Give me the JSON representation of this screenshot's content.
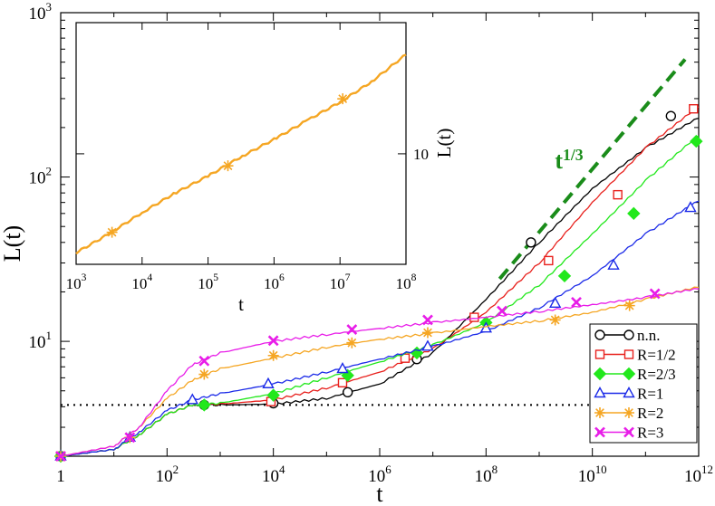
{
  "chart_data": [
    {
      "type": "line",
      "scale": {
        "x": "log",
        "y": "log"
      },
      "xlim": [
        1,
        1000000000000.0
      ],
      "ylim": [
        2,
        1000
      ],
      "xlabel": "t",
      "ylabel": "L(t)",
      "x_tick_labels": [
        {
          "value": 1,
          "base": "1",
          "exp": ""
        },
        {
          "value": 100,
          "base": "10",
          "exp": "2"
        },
        {
          "value": 10000,
          "base": "10",
          "exp": "4"
        },
        {
          "value": 1000000,
          "base": "10",
          "exp": "6"
        },
        {
          "value": 100000000,
          "base": "10",
          "exp": "8"
        },
        {
          "value": 10000000000,
          "base": "10",
          "exp": "10"
        },
        {
          "value": 1000000000000,
          "base": "10",
          "exp": "12"
        }
      ],
      "y_tick_labels": [
        {
          "value": 10,
          "base": "10",
          "exp": "1"
        },
        {
          "value": 100,
          "base": "10",
          "exp": "2"
        },
        {
          "value": 1000,
          "base": "10",
          "exp": "3"
        }
      ],
      "reference_lines": [
        {
          "style": "dotted",
          "color": "#000000",
          "y": 4.1,
          "x": [
            1,
            1000000000000.0
          ]
        },
        {
          "style": "dashed",
          "color": "#1a8c1a",
          "x": [
            100000000.0,
            1000000000000.0
          ],
          "y": [
            24,
            520
          ],
          "label_base": "t",
          "label_exp": "1/3"
        }
      ],
      "legend": {
        "position": "bottom-right"
      },
      "series": [
        {
          "name": "n.n.",
          "color": "#000000",
          "marker": "circle",
          "x": [
            1,
            10,
            30,
            100,
            300,
            1000,
            10000,
            100000,
            1000000,
            10000000,
            100000000,
            1000000000,
            10000000000,
            100000000000,
            1000000000000
          ],
          "y": [
            2,
            2.2,
            2.7,
            3.6,
            4.1,
            4.1,
            4.15,
            4.5,
            5.5,
            8.5,
            18,
            40,
            85,
            150,
            230
          ],
          "markers_x": [
            1,
            500,
            10000,
            250000,
            5000000,
            700000000,
            300000000000
          ],
          "markers_y": [
            2,
            4.1,
            4.2,
            4.9,
            7.8,
            40,
            235
          ]
        },
        {
          "name": "R=1/2",
          "color": "#e8201c",
          "marker": "square",
          "x": [
            1,
            10,
            30,
            100,
            300,
            1000,
            10000,
            100000,
            1000000,
            10000000,
            100000000,
            1000000000,
            10000000000,
            100000000000,
            1000000000000
          ],
          "y": [
            2,
            2.2,
            2.7,
            3.6,
            4.1,
            4.15,
            4.4,
            5.2,
            6.5,
            9,
            15,
            30,
            70,
            150,
            270
          ],
          "markers_x": [
            1,
            9000,
            200000,
            3000000,
            60000000,
            1500000000,
            30000000000,
            800000000000
          ],
          "markers_y": [
            2,
            4.3,
            5.6,
            7.9,
            14,
            31,
            78,
            260
          ]
        },
        {
          "name": "R=2/3",
          "color": "#22e81c",
          "marker": "diamond",
          "x": [
            1,
            10,
            30,
            100,
            300,
            1000,
            10000,
            100000,
            1000000,
            10000000,
            100000000,
            1000000000,
            10000000000,
            100000000000,
            1000000000000
          ],
          "y": [
            2,
            2.2,
            2.7,
            3.6,
            4.1,
            4.2,
            4.8,
            6,
            7.5,
            9.5,
            13,
            22,
            45,
            95,
            180
          ],
          "markers_x": [
            1,
            500,
            10000,
            250000,
            5000000,
            100000000,
            3000000000,
            60000000000,
            900000000000
          ],
          "markers_y": [
            2,
            4.1,
            4.7,
            6.2,
            8.5,
            13,
            25,
            60,
            165
          ]
        },
        {
          "name": "R=1",
          "color": "#1c2be8",
          "marker": "triangle",
          "x": [
            1,
            10,
            30,
            100,
            300,
            1000,
            10000,
            100000,
            1000000,
            10000000,
            100000000,
            1000000000,
            10000000000,
            100000000000,
            1000000000000
          ],
          "y": [
            2,
            2.2,
            2.8,
            3.8,
            4.4,
            4.8,
            5.5,
            6.5,
            7.8,
            9.3,
            11.5,
            16,
            25,
            45,
            72
          ],
          "markers_x": [
            1,
            20,
            300,
            8000,
            200000,
            8000000,
            100000000,
            2000000000,
            25000000000,
            700000000000
          ],
          "markers_y": [
            2,
            2.6,
            4.4,
            5.5,
            6.8,
            9.3,
            12,
            17,
            29,
            65
          ]
        },
        {
          "name": "R=2",
          "color": "#f5a623",
          "marker": "star",
          "x": [
            1,
            10,
            30,
            100,
            300,
            1000,
            10000,
            100000,
            1000000,
            10000000,
            100000000,
            1000000000,
            10000000000,
            100000000000,
            1000000000000
          ],
          "y": [
            2,
            2.3,
            3,
            4.5,
            5.8,
            6.8,
            7.9,
            9.2,
            10.3,
            11.2,
            12.3,
            13.3,
            15,
            18,
            21.5
          ],
          "markers_x": [
            1,
            20,
            500,
            10000,
            300000,
            8000000,
            2000000000,
            50000000000
          ],
          "markers_y": [
            2,
            2.6,
            6.3,
            8.2,
            9.8,
            11.3,
            13.5,
            16.5
          ]
        },
        {
          "name": "R=3",
          "color": "#e81ce8",
          "marker": "x",
          "x": [
            1,
            10,
            30,
            100,
            300,
            1000,
            10000,
            100000,
            1000000,
            10000000,
            100000000,
            1000000000,
            10000000000,
            100000000000,
            1000000000000
          ],
          "y": [
            2,
            2.3,
            3,
            5,
            7.2,
            8.5,
            10,
            11,
            12,
            13,
            14,
            15.2,
            16.7,
            18.5,
            21
          ],
          "markers_x": [
            1,
            20,
            500,
            10000,
            300000,
            8000000,
            200000000,
            5000000000,
            150000000000
          ],
          "markers_y": [
            2,
            2.6,
            7.6,
            10.1,
            11.8,
            13.5,
            15.3,
            17.3,
            19.5
          ]
        }
      ]
    },
    {
      "type": "line",
      "inset": true,
      "scale": {
        "x": "log",
        "y": "log"
      },
      "xlim": [
        1000,
        100000000
      ],
      "ylim": [
        4.2,
        28
      ],
      "xlabel": "t",
      "ylabel": "L(t)",
      "y_ticks_right": true,
      "x_tick_labels": [
        {
          "value": 1000,
          "base": "10",
          "exp": "3"
        },
        {
          "value": 10000,
          "base": "10",
          "exp": "4"
        },
        {
          "value": 100000,
          "base": "10",
          "exp": "5"
        },
        {
          "value": 1000000,
          "base": "10",
          "exp": "6"
        },
        {
          "value": 10000000,
          "base": "10",
          "exp": "7"
        },
        {
          "value": 100000000,
          "base": "10",
          "exp": "8"
        }
      ],
      "y_tick_labels": [
        {
          "value": 10,
          "text": "10"
        }
      ],
      "series": [
        {
          "color": "#f5a623",
          "marker": "star",
          "x": [
            1000,
            3000,
            10000,
            30000,
            100000,
            300000,
            1000000,
            3000000,
            10000000,
            30000000,
            100000000
          ],
          "y": [
            4.6,
            5.3,
            6.3,
            7.3,
            8.4,
            9.7,
            11.2,
            12.9,
            15.0,
            17.6,
            21.8
          ],
          "markers_x": [
            3500,
            200000,
            11000000
          ],
          "markers_y": [
            5.4,
            9.1,
            15.4
          ]
        }
      ]
    }
  ]
}
